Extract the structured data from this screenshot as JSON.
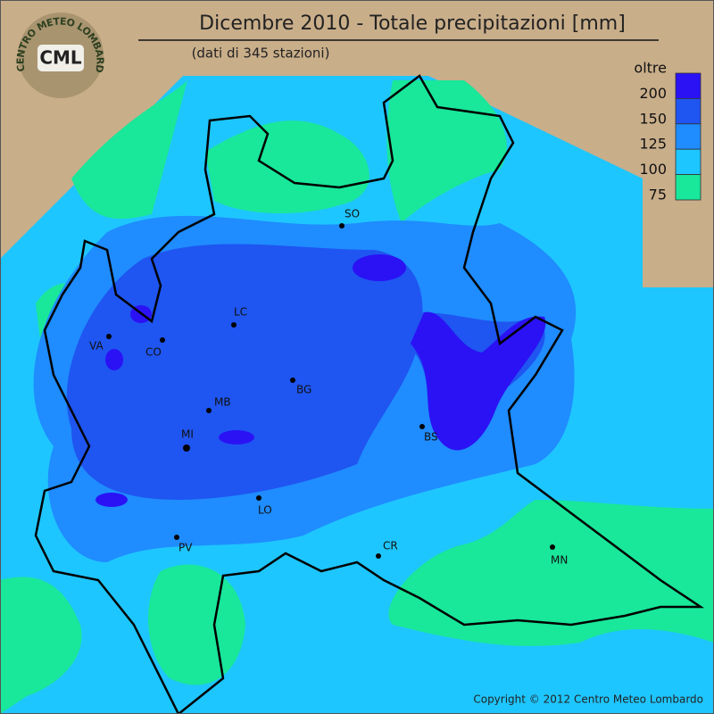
{
  "header": {
    "title": "Dicembre 2010 - Totale precipitazioni [mm]",
    "subtitle": "(dati di 345 stazioni)"
  },
  "logo": {
    "abbr": "CML",
    "ring": "CENTRO METEO LOMBARDO"
  },
  "legend": {
    "labels": [
      "oltre",
      "200",
      "150",
      "125",
      "100",
      "75"
    ],
    "colors": [
      "#2a12f5",
      "#1f55f0",
      "#1f8cff",
      "#1ec6ff",
      "#19e79a"
    ]
  },
  "cities": [
    "SO",
    "LC",
    "VA",
    "CO",
    "BG",
    "MB",
    "MI",
    "BS",
    "LO",
    "PV",
    "CR",
    "MN"
  ],
  "copyright": "Copyright © 2012 Centro Meteo Lombardo"
}
